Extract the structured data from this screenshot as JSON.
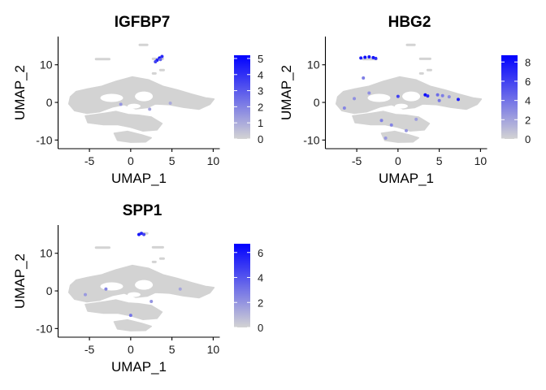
{
  "chart_data": [
    {
      "type": "scatter",
      "title": "IGFBP7",
      "xlabel": "UMAP_1",
      "ylabel": "UMAP_2",
      "xlim": [
        -8.8,
        10.8
      ],
      "ylim": [
        -12.3,
        17.5
      ],
      "xticks": [
        -5,
        0,
        5,
        10
      ],
      "yticks": [
        -10,
        0,
        10
      ],
      "legend": {
        "placement": "right",
        "min": 0,
        "max": 5.2,
        "ticks": [
          0,
          1,
          2,
          3,
          4,
          5
        ]
      },
      "low_color": "#d3d3d3",
      "high_color": "#0000ff",
      "highlights": [
        {
          "x": 3.2,
          "y": 11.2,
          "value": 4.5
        },
        {
          "x": 3.5,
          "y": 11.8,
          "value": 5.0
        },
        {
          "x": 3.8,
          "y": 12.2,
          "value": 4.2
        },
        {
          "x": 3.0,
          "y": 10.8,
          "value": 3.6
        },
        {
          "x": 3.6,
          "y": 11.4,
          "value": 2.8
        },
        {
          "x": -1.2,
          "y": -0.5,
          "value": 1.5
        },
        {
          "x": 2.3,
          "y": -1.8,
          "value": 1.2
        },
        {
          "x": 4.8,
          "y": -0.2,
          "value": 1.0
        }
      ]
    },
    {
      "type": "scatter",
      "title": "HBG2",
      "xlabel": "UMAP_1",
      "ylabel": "UMAP_2",
      "xlim": [
        -8.8,
        10.8
      ],
      "ylim": [
        -12.3,
        17.5
      ],
      "xticks": [
        -5,
        0,
        5,
        10
      ],
      "yticks": [
        -10,
        0,
        10
      ],
      "legend": {
        "placement": "right",
        "min": 0,
        "max": 8.7,
        "ticks": [
          0,
          2,
          4,
          6,
          8
        ]
      },
      "low_color": "#d3d3d3",
      "high_color": "#0000ff",
      "highlights": [
        {
          "x": -4.5,
          "y": 11.8,
          "value": 7.5
        },
        {
          "x": -4.0,
          "y": 12.0,
          "value": 8.2
        },
        {
          "x": -3.5,
          "y": 12.1,
          "value": 7.8
        },
        {
          "x": -3.0,
          "y": 11.9,
          "value": 8.0
        },
        {
          "x": -2.7,
          "y": 11.7,
          "value": 6.9
        },
        {
          "x": -4.2,
          "y": 6.5,
          "value": 3.5
        },
        {
          "x": 0.0,
          "y": 1.6,
          "value": 6.0
        },
        {
          "x": 3.3,
          "y": 2.0,
          "value": 8.2
        },
        {
          "x": 3.6,
          "y": 1.7,
          "value": 7.0
        },
        {
          "x": 4.8,
          "y": 2.0,
          "value": 4.2
        },
        {
          "x": 5.4,
          "y": 1.8,
          "value": 3.5
        },
        {
          "x": 6.2,
          "y": 1.5,
          "value": 3.0
        },
        {
          "x": 7.3,
          "y": 0.8,
          "value": 7.5
        },
        {
          "x": -6.5,
          "y": -1.5,
          "value": 3.2
        },
        {
          "x": -5.3,
          "y": 1.0,
          "value": 2.8
        },
        {
          "x": -2.0,
          "y": -4.8,
          "value": 3.5
        },
        {
          "x": -1.5,
          "y": -9.5,
          "value": 2.4
        },
        {
          "x": 1.0,
          "y": -7.5,
          "value": 2.5
        },
        {
          "x": -0.8,
          "y": -6.0,
          "value": 3.3
        },
        {
          "x": 2.2,
          "y": -4.5,
          "value": 2.2
        },
        {
          "x": -3.5,
          "y": 2.5,
          "value": 2.8
        },
        {
          "x": 5.0,
          "y": 0.5,
          "value": 3.8
        }
      ]
    },
    {
      "type": "scatter",
      "title": "SPP1",
      "xlabel": "UMAP_1",
      "ylabel": "UMAP_2",
      "xlim": [
        -8.8,
        10.8
      ],
      "ylim": [
        -12.3,
        17.5
      ],
      "xticks": [
        -5,
        0,
        5,
        10
      ],
      "yticks": [
        -10,
        0,
        10
      ],
      "legend": {
        "placement": "right",
        "min": 0,
        "max": 6.7,
        "ticks": [
          0,
          2,
          4,
          6
        ]
      },
      "low_color": "#d3d3d3",
      "high_color": "#0000ff",
      "highlights": [
        {
          "x": 1.0,
          "y": 15.0,
          "value": 6.0
        },
        {
          "x": 1.3,
          "y": 15.3,
          "value": 5.5
        },
        {
          "x": 1.6,
          "y": 15.0,
          "value": 4.5
        },
        {
          "x": 0.0,
          "y": -6.5,
          "value": 3.0
        },
        {
          "x": -3.0,
          "y": 0.5,
          "value": 2.5
        },
        {
          "x": 2.5,
          "y": -2.8,
          "value": 2.0
        },
        {
          "x": -5.5,
          "y": -1.0,
          "value": 1.8
        },
        {
          "x": 6.0,
          "y": 0.5,
          "value": 1.5
        }
      ]
    }
  ]
}
